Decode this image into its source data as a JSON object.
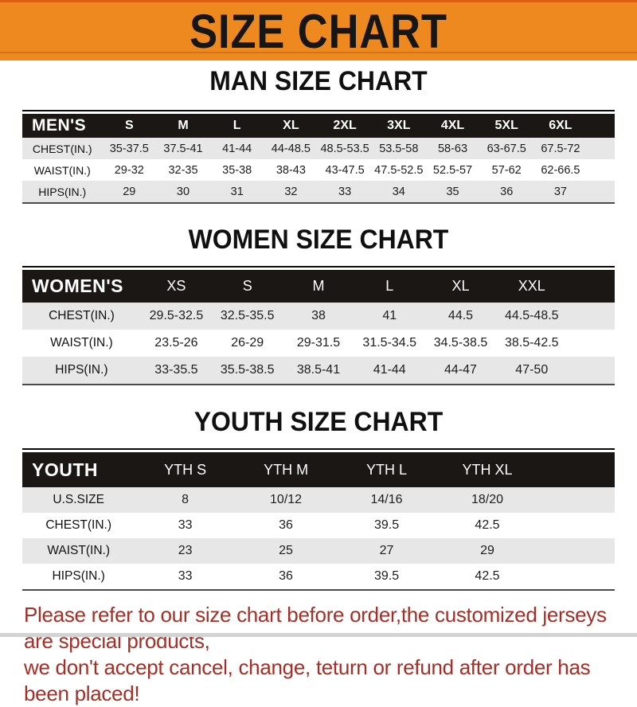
{
  "banner": {
    "title": "SIZE CHART"
  },
  "colors": {
    "banner_orange": "#ee891f",
    "banner_top_line": "#dd5f10",
    "header_bar_black": "#1a1715",
    "row_stripe_gray": "#e7e7e7",
    "table_border": "#4a4a4a",
    "footer_red": "#a52e26",
    "bottom_strip_gray": "#d3d3d3"
  },
  "sections": [
    {
      "heading": "MAN SIZE CHART",
      "table": {
        "header_label": "MEN'S",
        "columns": [
          "S",
          "M",
          "L",
          "XL",
          "2XL",
          "3XL",
          "4XL",
          "5XL",
          "6XL"
        ],
        "rows": [
          {
            "label": "CHEST(IN.)",
            "values": [
              "35-37.5",
              "37.5-41",
              "41-44",
              "44-48.5",
              "48.5-53.5",
              "53.5-58",
              "58-63",
              "63-67.5",
              "67.5-72"
            ]
          },
          {
            "label": "WAIST(IN.)",
            "values": [
              "29-32",
              "32-35",
              "35-38",
              "38-43",
              "43-47.5",
              "47.5-52.5",
              "52.5-57",
              "57-62",
              "62-66.5"
            ]
          },
          {
            "label": "HIPS(IN.)",
            "values": [
              "29",
              "30",
              "31",
              "32",
              "33",
              "34",
              "35",
              "36",
              "37"
            ]
          }
        ]
      }
    },
    {
      "heading": "WOMEN SIZE CHART",
      "table": {
        "header_label": "WOMEN'S",
        "columns": [
          "XS",
          "S",
          "M",
          "L",
          "XL",
          "XXL"
        ],
        "rows": [
          {
            "label": "CHEST(IN.)",
            "values": [
              "29.5-32.5",
              "32.5-35.5",
              "38",
              "41",
              "44.5",
              "44.5-48.5"
            ]
          },
          {
            "label": "WAIST(IN.)",
            "values": [
              "23.5-26",
              "26-29",
              "29-31.5",
              "31.5-34.5",
              "34.5-38.5",
              "38.5-42.5"
            ]
          },
          {
            "label": "HIPS(IN.)",
            "values": [
              "33-35.5",
              "35.5-38.5",
              "38.5-41",
              "41-44",
              "44-47",
              "47-50"
            ]
          }
        ]
      }
    },
    {
      "heading": "YOUTH SIZE CHART",
      "table": {
        "header_label": "YOUTH",
        "columns": [
          "YTH S",
          "YTH M",
          "YTH L",
          "YTH XL"
        ],
        "rows": [
          {
            "label": "U.S.SIZE",
            "values": [
              "8",
              "10/12",
              "14/16",
              "18/20"
            ]
          },
          {
            "label": "CHEST(IN.)",
            "values": [
              "33",
              "36",
              "39.5",
              "42.5"
            ]
          },
          {
            "label": "WAIST(IN.)",
            "values": [
              "23",
              "25",
              "27",
              "29"
            ]
          },
          {
            "label": "HIPS(IN.)",
            "values": [
              "33",
              "36",
              "39.5",
              "42.5"
            ]
          }
        ]
      }
    }
  ],
  "footer": {
    "line1": "Please refer to our size chart before order,the customized jerseys are special products,",
    "line2": "we don't accept cancel, change, teturn or refund after order has been placed!"
  }
}
